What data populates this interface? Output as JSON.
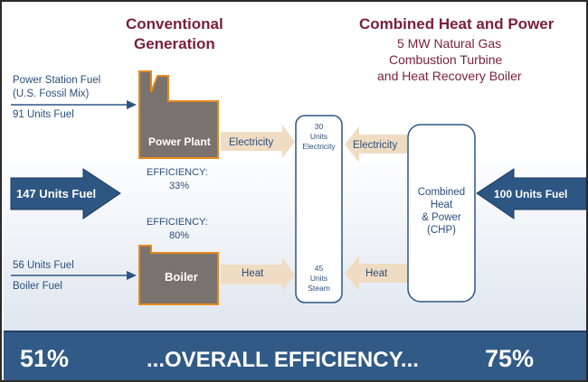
{
  "conventional": {
    "title_line1": "Conventional",
    "title_line2": "Generation",
    "power_station_fuel_line1": "Power Station Fuel",
    "power_station_fuel_line2": "(U.S. Fossil Mix)",
    "power_station_units": "91 Units Fuel",
    "total_fuel": "147 Units Fuel",
    "power_plant_label": "Power Plant",
    "power_plant_efficiency_label": "EFFICIENCY:",
    "power_plant_efficiency_value": "33%",
    "boiler_efficiency_label": "EFFICIENCY:",
    "boiler_efficiency_value": "80%",
    "boiler_units": "56 Units Fuel",
    "boiler_fuel": "Boiler Fuel",
    "boiler_label": "Boiler",
    "electricity_arrow": "Electricity",
    "heat_arrow": "Heat"
  },
  "chp": {
    "title": "Combined Heat and Power",
    "subtitle_line1": "5 MW Natural Gas",
    "subtitle_line2": "Combustion Turbine",
    "subtitle_line3": "and Heat Recovery Boiler",
    "box_line1": "Combined",
    "box_line2": "Heat",
    "box_line3": "& Power",
    "box_line4": "(CHP)",
    "fuel": "100 Units Fuel",
    "electricity_arrow": "Electricity",
    "heat_arrow": "Heat"
  },
  "demand": {
    "electricity_line1": "30",
    "electricity_line2": "Units",
    "electricity_line3": "Electricity",
    "steam_line1": "45",
    "steam_line2": "Units",
    "steam_line3": "Steam"
  },
  "footer": {
    "conventional_efficiency": "51%",
    "label": "...OVERALL EFFICIENCY...",
    "chp_efficiency": "75%"
  },
  "colors": {
    "maroon": "#7b1e3c",
    "blue_text": "#2a4e7e",
    "dark_arrow": "#2d5683",
    "tan_arrow": "#efdcc2",
    "plant_fill": "#7a726c",
    "plant_outline": "#e58a1f",
    "footer_bg": "#315a86"
  }
}
